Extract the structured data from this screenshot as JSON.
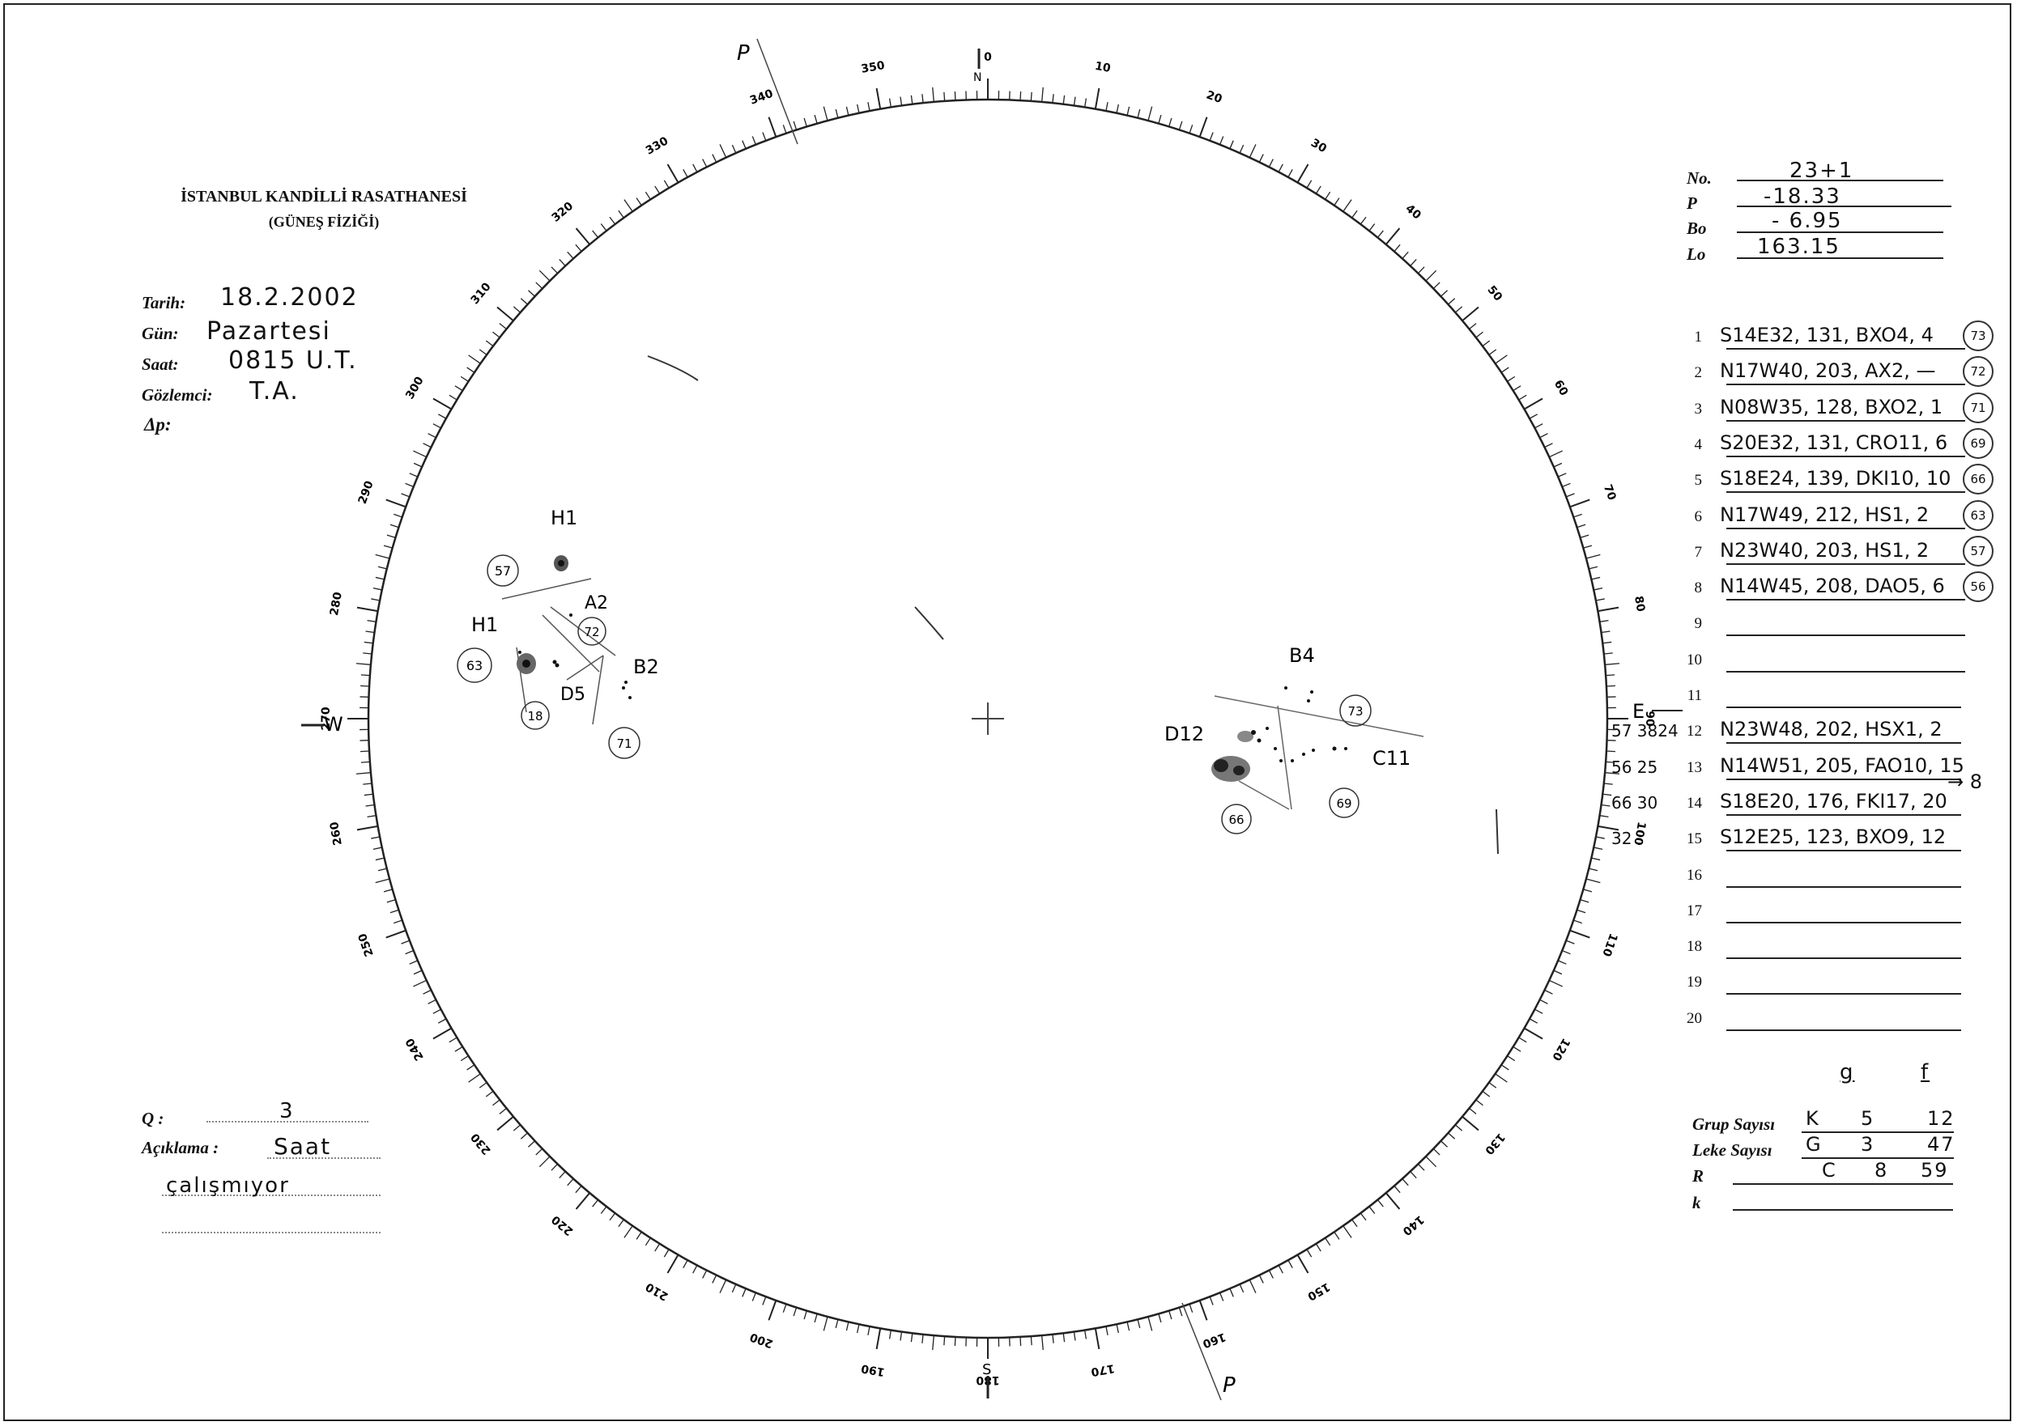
{
  "header": {
    "line1": "İSTANBUL KANDİLLİ RASATHANESİ",
    "line2": "(GÜNEŞ FİZİĞİ)"
  },
  "observation": {
    "date_label": "Tarih:",
    "date_value": "18.2.2002",
    "day_label": "Gün:",
    "day_value": "Pazartesi",
    "time_label": "Saat:",
    "time_value": "0815 U.T.",
    "observer_label": "Gözlemci:",
    "observer_value": "T.A.",
    "delta_p_label": "Δp:"
  },
  "params": {
    "no_label": "No.",
    "no_value": "23+1",
    "p_label": "P",
    "p_value": "-18.33",
    "bo_label": "Bo",
    "bo_value": "- 6.95",
    "lo_label": "Lo",
    "lo_value": "163.15"
  },
  "groups": [
    {
      "num": "1",
      "text": "S14E32, 131, BXO4, 4",
      "circle": "73",
      "prefix": ""
    },
    {
      "num": "2",
      "text": "N17W40, 203, AX2, —",
      "circle": "72",
      "prefix": ""
    },
    {
      "num": "3",
      "text": "N08W35, 128, BXO2, 1",
      "circle": "71",
      "prefix": ""
    },
    {
      "num": "4",
      "text": "S20E32, 131, CRO11, 6",
      "circle": "69",
      "prefix": ""
    },
    {
      "num": "5",
      "text": "S18E24, 139, DKI10, 10",
      "circle": "66",
      "prefix": ""
    },
    {
      "num": "6",
      "text": "N17W49, 212, HS1, 2",
      "circle": "63",
      "prefix": ""
    },
    {
      "num": "7",
      "text": "N23W40, 203, HS1, 2",
      "circle": "57",
      "prefix": ""
    },
    {
      "num": "8",
      "text": "N14W45, 208, DAO5, 6",
      "circle": "56",
      "prefix": ""
    },
    {
      "num": "9",
      "text": "",
      "circle": "",
      "prefix": ""
    },
    {
      "num": "10",
      "text": "",
      "circle": "",
      "prefix": ""
    },
    {
      "num": "11",
      "text": "",
      "circle": "",
      "prefix": ""
    },
    {
      "num": "12",
      "text": "N23W48, 202, HSX1, 2",
      "circle": "",
      "prefix": "57 3824"
    },
    {
      "num": "13",
      "text": "N14W51, 205, FAO10, 15",
      "circle": "",
      "prefix": "56 25"
    },
    {
      "num": "14",
      "text": "S18E20, 176, FKI17, 20",
      "circle": "",
      "prefix": "66 30"
    },
    {
      "num": "15",
      "text": "S12E25, 123, BXO9, 12",
      "circle": "",
      "prefix": "32"
    },
    {
      "num": "16",
      "text": "",
      "circle": "",
      "prefix": ""
    },
    {
      "num": "17",
      "text": "",
      "circle": "",
      "prefix": ""
    },
    {
      "num": "18",
      "text": "",
      "circle": "",
      "prefix": ""
    },
    {
      "num": "19",
      "text": "",
      "circle": "",
      "prefix": ""
    },
    {
      "num": "20",
      "text": "",
      "circle": "",
      "prefix": ""
    }
  ],
  "side_note_13": "→ 8",
  "summary": {
    "col_g": "g",
    "col_f": "f",
    "grup_label": "Grup Sayısı",
    "grup_k": "K",
    "grup_g": "5",
    "grup_f": "12",
    "leke_label": "Leke Sayısı",
    "leke_k": "G",
    "leke_g": "3",
    "leke_f": "47",
    "r_label": "R",
    "r_k": "C",
    "r_g": "8",
    "r_f": "59",
    "k_label": "k"
  },
  "quality": {
    "q_label": "Q :",
    "q_value": "3",
    "note_label": "Açıklama :",
    "note_value_1": "Saat",
    "note_value_2": "çalışmıyor"
  },
  "disk": {
    "north": "N",
    "south": "S",
    "east": "E",
    "west": "W",
    "p_mark": "P",
    "tick_labels": [
      "0",
      "10",
      "20",
      "30",
      "40",
      "50",
      "60",
      "70",
      "80",
      "90",
      "100",
      "110",
      "120",
      "130",
      "140",
      "150",
      "160",
      "170",
      "180",
      "190",
      "200",
      "210",
      "220",
      "230",
      "240",
      "250",
      "260",
      "270",
      "280",
      "290",
      "300",
      "310",
      "320",
      "330",
      "340",
      "350"
    ],
    "annotations": {
      "h1_top": "H1",
      "a2": "A2",
      "h1_left": "H1",
      "d5": "D5",
      "b2": "B2",
      "b4": "B4",
      "d12": "D12",
      "c11": "C11",
      "c57": "57",
      "c72": "72",
      "c63": "63",
      "c18": "18",
      "c71": "71",
      "c73": "73",
      "c66": "66",
      "c69": "69"
    }
  }
}
